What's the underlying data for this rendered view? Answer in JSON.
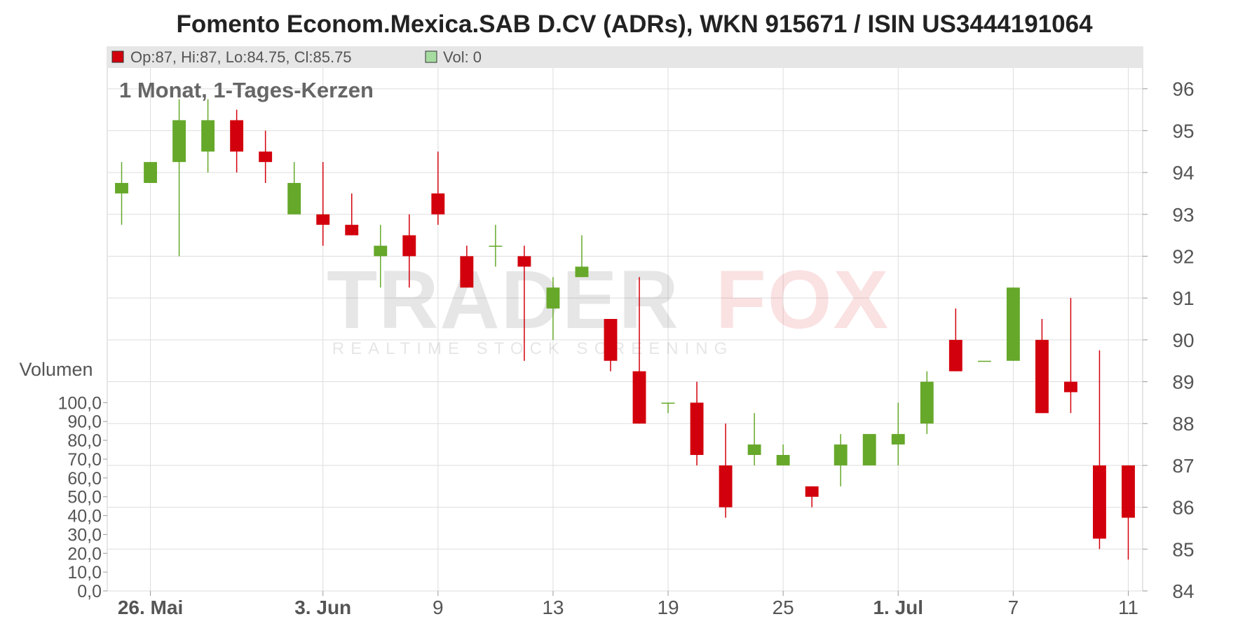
{
  "chart_data": {
    "type": "candlestick",
    "title": "Fomento Econom.Mexica.SAB D.CV (ADRs), WKN 915671 / ISIN US3444191064",
    "subtitle": "1 Monat, 1-Tages-Kerzen",
    "legend": {
      "ohlc_label": "Op:87, Hi:87, Lo:84.75, Cl:85.75",
      "volume_label": "Vol: 0",
      "placement": "top-left"
    },
    "volume_axis_label": "Volumen",
    "watermark": {
      "brand_left": "TRADER",
      "brand_right": "FOX",
      "tagline": "REALTIME STOCK SCREENING"
    },
    "x_ticks": [
      {
        "label": "26. Mai",
        "pos": 1.5,
        "bold": true
      },
      {
        "label": "3. Jun",
        "pos": 7.5,
        "bold": true
      },
      {
        "label": "9",
        "pos": 11.5,
        "bold": false
      },
      {
        "label": "13",
        "pos": 15.5,
        "bold": false
      },
      {
        "label": "19",
        "pos": 19.5,
        "bold": false
      },
      {
        "label": "25",
        "pos": 23.5,
        "bold": false
      },
      {
        "label": "1. Jul",
        "pos": 27.5,
        "bold": true
      },
      {
        "label": "7",
        "pos": 31.5,
        "bold": false
      },
      {
        "label": "11",
        "pos": 35.5,
        "bold": false
      }
    ],
    "x_range": [
      0,
      36
    ],
    "price_axis": {
      "min": 84,
      "max": 97,
      "ticks": [
        84,
        85,
        86,
        87,
        88,
        89,
        90,
        91,
        92,
        93,
        94,
        95,
        96
      ]
    },
    "volume_axis": {
      "min": 0,
      "max": 100,
      "ticks": [
        "0,0",
        "10,0",
        "20,0",
        "30,0",
        "40,0",
        "50,0",
        "60,0",
        "70,0",
        "80,0",
        "90,0",
        "100,0"
      ]
    },
    "grid": true,
    "colors": {
      "up": "#66a82a",
      "down": "#d2000c",
      "grid": "#dddddd",
      "header_band": "#e6e6e6",
      "volume_legend": "#a7dca0"
    },
    "candles": [
      {
        "open": 93.5,
        "high": 94.25,
        "low": 92.75,
        "close": 93.75
      },
      {
        "open": 93.75,
        "high": 94.25,
        "low": 93.75,
        "close": 94.25
      },
      {
        "open": 94.25,
        "high": 95.75,
        "low": 92.0,
        "close": 95.25
      },
      {
        "open": 94.5,
        "high": 95.75,
        "low": 94.0,
        "close": 95.25
      },
      {
        "open": 95.25,
        "high": 95.5,
        "low": 94.0,
        "close": 94.5
      },
      {
        "open": 94.5,
        "high": 95.0,
        "low": 93.75,
        "close": 94.25
      },
      {
        "open": 93.0,
        "high": 94.25,
        "low": 93.0,
        "close": 93.75
      },
      {
        "open": 93.0,
        "high": 94.25,
        "low": 92.25,
        "close": 92.75
      },
      {
        "open": 92.75,
        "high": 93.5,
        "low": 92.5,
        "close": 92.5
      },
      {
        "open": 92.0,
        "high": 92.75,
        "low": 91.25,
        "close": 92.25
      },
      {
        "open": 92.5,
        "high": 93.0,
        "low": 91.25,
        "close": 92.0
      },
      {
        "open": 93.5,
        "high": 94.5,
        "low": 92.75,
        "close": 93.0
      },
      {
        "open": 92.0,
        "high": 92.25,
        "low": 91.25,
        "close": 91.25
      },
      {
        "open": 92.25,
        "high": 92.75,
        "low": 91.75,
        "close": 92.25
      },
      {
        "open": 92.0,
        "high": 92.25,
        "low": 89.5,
        "close": 91.75
      },
      {
        "open": 90.75,
        "high": 91.5,
        "low": 90.0,
        "close": 91.25
      },
      {
        "open": 91.5,
        "high": 92.5,
        "low": 91.5,
        "close": 91.75
      },
      {
        "open": 90.5,
        "high": 90.5,
        "low": 89.25,
        "close": 89.5
      },
      {
        "open": 89.25,
        "high": 91.5,
        "low": 88.0,
        "close": 88.0
      },
      {
        "open": 88.5,
        "high": 88.5,
        "low": 88.25,
        "close": 88.5
      },
      {
        "open": 88.5,
        "high": 89.0,
        "low": 87.0,
        "close": 87.25
      },
      {
        "open": 87.0,
        "high": 88.0,
        "low": 85.75,
        "close": 86.0
      },
      {
        "open": 87.25,
        "high": 88.25,
        "low": 87.0,
        "close": 87.5
      },
      {
        "open": 87.0,
        "high": 87.5,
        "low": 87.0,
        "close": 87.25
      },
      {
        "open": 86.5,
        "high": 86.5,
        "low": 86.0,
        "close": 86.25
      },
      {
        "open": 87.0,
        "high": 87.75,
        "low": 86.5,
        "close": 87.5
      },
      {
        "open": 87.0,
        "high": 87.75,
        "low": 87.0,
        "close": 87.75
      },
      {
        "open": 87.5,
        "high": 88.5,
        "low": 87.0,
        "close": 87.75
      },
      {
        "open": 88.0,
        "high": 89.25,
        "low": 87.75,
        "close": 89.0
      },
      {
        "open": 90.0,
        "high": 90.75,
        "low": 89.25,
        "close": 89.25
      },
      {
        "open": 89.5,
        "high": 89.5,
        "low": 89.5,
        "close": 89.5
      },
      {
        "open": 89.5,
        "high": 91.25,
        "low": 89.5,
        "close": 91.25
      },
      {
        "open": 90.0,
        "high": 90.5,
        "low": 88.25,
        "close": 88.25
      },
      {
        "open": 89.0,
        "high": 91.0,
        "low": 88.25,
        "close": 88.75
      },
      {
        "open": 87.0,
        "high": 89.75,
        "low": 85.0,
        "close": 85.25
      },
      {
        "open": 87.0,
        "high": 87.0,
        "low": 84.75,
        "close": 85.75
      }
    ]
  }
}
